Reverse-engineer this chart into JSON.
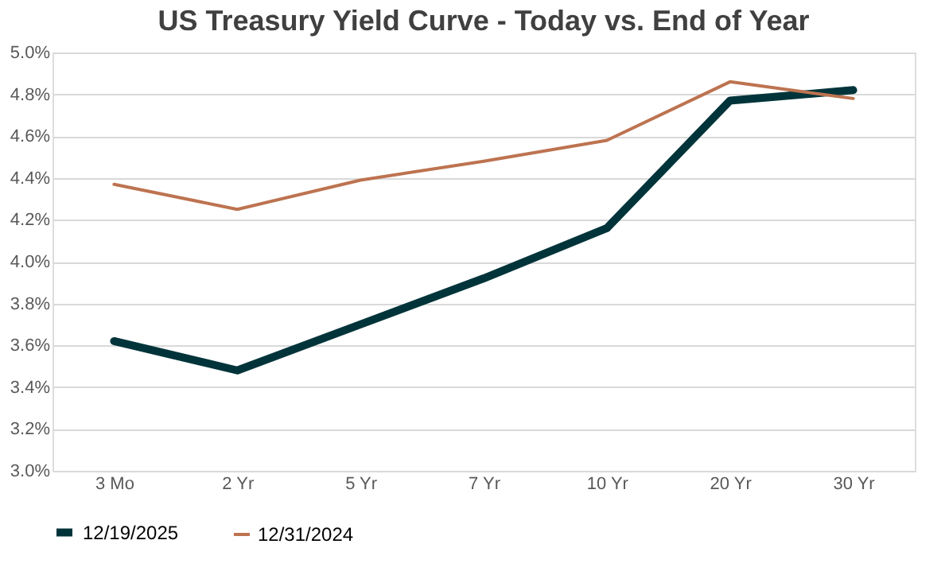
{
  "chart_data": {
    "type": "line",
    "title": "US Treasury Yield Curve - Today vs. End of Year",
    "categories": [
      "3 Mo",
      "2 Yr",
      "5 Yr",
      "7 Yr",
      "10 Yr",
      "20 Yr",
      "30 Yr"
    ],
    "series": [
      {
        "name": "12/19/2025",
        "color": "#01343a",
        "values": [
          3.62,
          3.48,
          3.7,
          3.92,
          4.16,
          4.77,
          4.82
        ]
      },
      {
        "name": "12/31/2024",
        "color": "#bd7350",
        "values": [
          4.37,
          4.25,
          4.39,
          4.48,
          4.58,
          4.86,
          4.78
        ]
      }
    ],
    "ylim": [
      3.0,
      5.0
    ],
    "yticks": [
      {
        "value": 3.0,
        "label": "3.0%"
      },
      {
        "value": 3.2,
        "label": "3.2%"
      },
      {
        "value": 3.4,
        "label": "3.4%"
      },
      {
        "value": 3.6,
        "label": "3.6%"
      },
      {
        "value": 3.8,
        "label": "3.8%"
      },
      {
        "value": 4.0,
        "label": "4.0%"
      },
      {
        "value": 4.2,
        "label": "4.2%"
      },
      {
        "value": 4.4,
        "label": "4.4%"
      },
      {
        "value": 4.6,
        "label": "4.6%"
      },
      {
        "value": 4.8,
        "label": "4.8%"
      },
      {
        "value": 5.0,
        "label": "5.0%"
      }
    ],
    "grid": "y",
    "legend": "bottom",
    "marker": "none",
    "line_style": "solid"
  }
}
